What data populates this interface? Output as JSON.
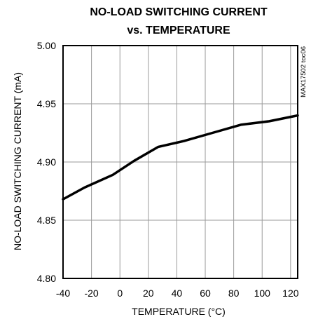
{
  "chart_data": {
    "type": "line",
    "title_line1": "NO-LOAD SWITCHING CURRENT",
    "title_line2": "vs. TEMPERATURE",
    "xlabel": "TEMPERATURE (°C)",
    "ylabel": "NO-LOAD SWITCHING CURRENT (mA)",
    "part_code": "MAX17502 toc06",
    "xlim": [
      -40,
      125
    ],
    "ylim": [
      4.8,
      5.0
    ],
    "x_ticks": [
      "-40",
      "-20",
      "0",
      "20",
      "40",
      "60",
      "80",
      "100",
      "120"
    ],
    "y_ticks": [
      "4.80",
      "4.85",
      "4.90",
      "4.95",
      "5.00"
    ],
    "grid": true,
    "series": [
      {
        "x": [
          -40,
          -25,
          -5,
          10,
          27,
          45,
          65,
          85,
          105,
          125
        ],
        "y": [
          4.868,
          4.878,
          4.889,
          4.901,
          4.913,
          4.918,
          4.925,
          4.932,
          4.935,
          4.94
        ]
      }
    ],
    "colors": {
      "line": "#000000",
      "grid": "#9a9a9a",
      "frame": "#000000"
    }
  }
}
